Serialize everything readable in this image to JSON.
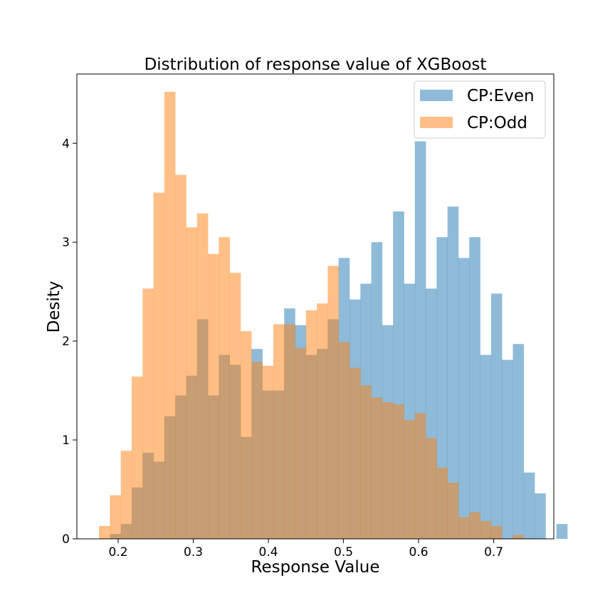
{
  "chart_data": {
    "type": "histogram",
    "title": "Distribution of response value of XGBoost",
    "xlabel": "Response Value",
    "ylabel": "Desity",
    "xlim": [
      0.145,
      0.78
    ],
    "ylim": [
      0,
      4.7
    ],
    "xticks": [
      "0.2",
      "0.3",
      "0.4",
      "0.5",
      "0.6",
      "0.7"
    ],
    "yticks": [
      "0",
      "1",
      "2",
      "3",
      "4"
    ],
    "grid": false,
    "legend_position": "top-right",
    "bin_start": 0.1745,
    "bin_width": 0.0145,
    "series": [
      {
        "name": "CP:Even",
        "color": "#1f77b4",
        "alpha": 0.5,
        "start_index": 1,
        "values": [
          0.05,
          0.15,
          0.52,
          0.87,
          0.78,
          1.24,
          1.45,
          1.65,
          2.22,
          1.45,
          1.86,
          1.76,
          1.03,
          1.92,
          1.5,
          1.5,
          2.33,
          2.16,
          1.86,
          1.92,
          2.22,
          2.84,
          2.42,
          2.58,
          3.0,
          2.16,
          3.31,
          2.58,
          4.02,
          2.53,
          3.05,
          3.36,
          2.84,
          3.05,
          1.86,
          2.48,
          1.81,
          1.97,
          0.67,
          0.46,
          0.0,
          0.15
        ]
      },
      {
        "name": "CP:Odd",
        "color": "#ff7f0e",
        "alpha": 0.5,
        "start_index": 0,
        "values": [
          0.13,
          0.44,
          0.89,
          1.64,
          2.53,
          3.5,
          4.52,
          3.68,
          3.15,
          3.29,
          2.88,
          3.05,
          2.69,
          2.1,
          1.79,
          1.75,
          2.17,
          2.17,
          1.93,
          2.31,
          2.38,
          2.76,
          1.99,
          1.73,
          1.55,
          1.43,
          1.38,
          1.36,
          1.2,
          1.27,
          1.02,
          0.72,
          0.57,
          0.22,
          0.27,
          0.18,
          0.13,
          0.0,
          0.04
        ]
      }
    ]
  }
}
